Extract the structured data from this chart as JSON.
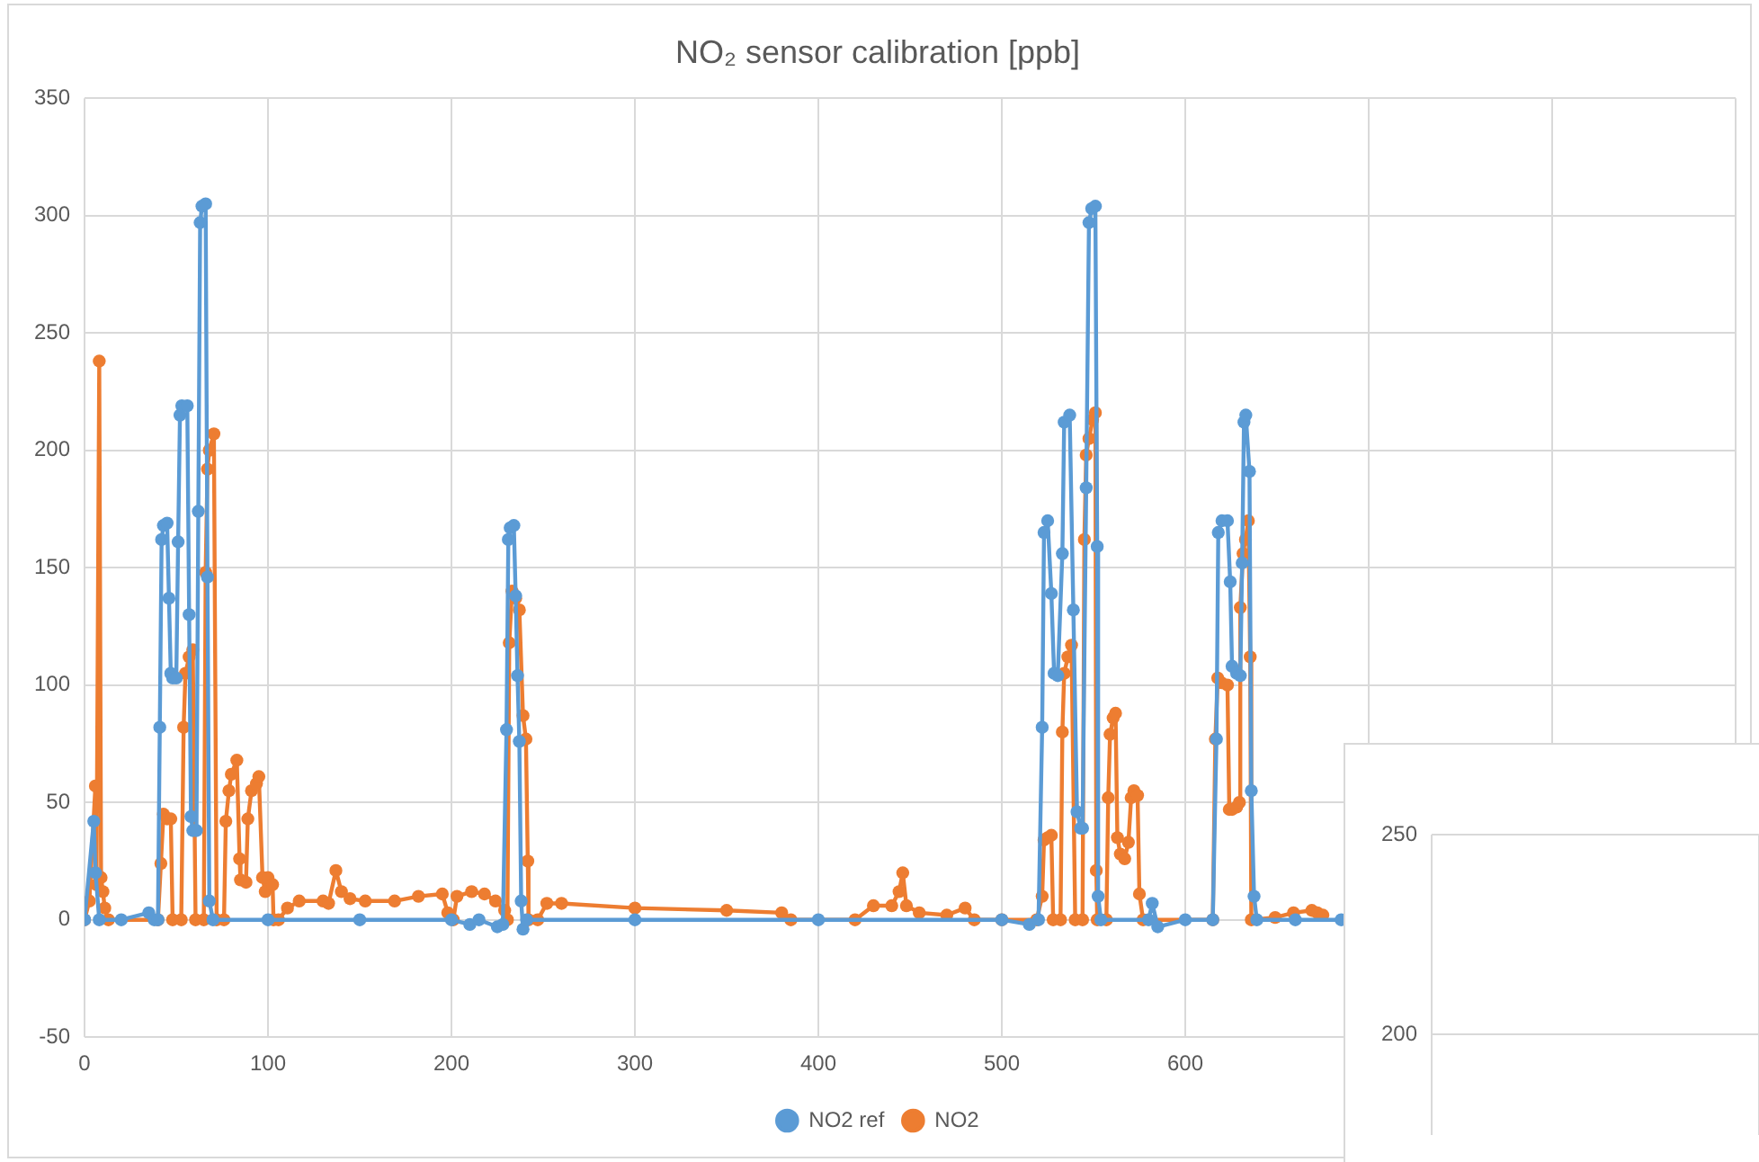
{
  "chart_data": [
    {
      "type": "line",
      "title": "NO₂ sensor calibration [ppb]",
      "xlim": [
        0,
        900
      ],
      "xticks": [
        0,
        100,
        200,
        300,
        400,
        500,
        600,
        {
          "value": 700,
          "label": null
        },
        {
          "value": 800,
          "label": null
        },
        {
          "value": 900,
          "label": null
        }
      ],
      "ylim": [
        -50,
        350
      ],
      "yticks": [
        -50,
        0,
        50,
        100,
        150,
        200,
        250,
        300,
        350
      ],
      "grid": true,
      "legend": "bottom",
      "marker": "circle",
      "line_style": "solid",
      "series": [
        {
          "name": "NO2 ref",
          "color": "#5b9bd5",
          "x": [
            0,
            5,
            6,
            8,
            20,
            35,
            38,
            40,
            41,
            42,
            43,
            45,
            46,
            47,
            48,
            50,
            51,
            52,
            53,
            56,
            57,
            58,
            59,
            61,
            62,
            63,
            64,
            66,
            67,
            68,
            70,
            100,
            150,
            200,
            210,
            215,
            225,
            228,
            230,
            231,
            232,
            234,
            235,
            236,
            237,
            238,
            239,
            241,
            300,
            400,
            500,
            515,
            520,
            522,
            523,
            525,
            527,
            528.5,
            530.5,
            533,
            534,
            537,
            539,
            541,
            543,
            544,
            546,
            547.5,
            549,
            551,
            552,
            552.5,
            554,
            580,
            582,
            585,
            600,
            615,
            617,
            618,
            620,
            623,
            624.5,
            625.5,
            628,
            630,
            631,
            632,
            633,
            635,
            636,
            637.5,
            639,
            660,
            685
          ],
          "values": [
            0,
            42,
            20,
            0,
            0,
            3,
            0,
            0,
            82,
            162,
            168,
            169,
            137,
            105,
            103,
            103,
            161,
            215,
            219,
            219,
            130,
            44,
            38,
            38,
            174,
            297,
            304,
            305,
            146,
            8,
            0,
            0,
            0,
            0,
            -2,
            0,
            -3,
            -2,
            81,
            162,
            167,
            168,
            138,
            104,
            76,
            8,
            -4,
            0,
            0,
            0,
            0,
            -2,
            0,
            82,
            165,
            170,
            139,
            105,
            104,
            156,
            212,
            215,
            132,
            46,
            39,
            39,
            184,
            297,
            303,
            304,
            159,
            10,
            0,
            0,
            7,
            -3,
            0,
            0,
            77,
            165,
            170,
            170,
            144,
            108,
            105,
            104,
            152,
            212,
            215,
            191,
            55,
            10,
            0,
            0,
            0
          ]
        },
        {
          "name": "NO2",
          "color": "#ed7d31",
          "x": [
            0,
            2.6,
            5.9,
            6.5,
            8,
            9,
            10,
            11,
            13,
            40,
            41.6,
            43,
            45,
            47,
            48,
            52.7,
            54,
            55,
            57,
            59,
            60.5,
            65,
            66,
            67,
            68,
            70.5,
            72,
            76,
            77,
            78.7,
            80,
            83,
            84.5,
            85,
            88,
            89,
            91,
            93.7,
            95,
            97,
            98.5,
            100,
            102.5,
            103,
            105.7,
            110.6,
            117,
            130,
            133,
            137,
            140,
            144.7,
            153,
            169,
            182,
            195,
            198,
            201,
            203,
            211,
            218,
            224,
            229,
            230.5,
            231.5,
            233,
            235,
            237,
            239,
            240.6,
            241.6,
            242,
            247,
            252,
            260,
            300,
            350,
            380,
            385,
            420,
            430,
            440,
            444,
            446,
            448,
            455,
            470,
            480,
            485,
            500,
            519,
            522,
            523,
            525,
            527,
            528,
            532,
            533,
            534,
            536,
            538,
            540,
            544,
            545,
            546,
            547.5,
            549.5,
            551,
            551.5,
            552,
            557,
            558,
            559,
            560.7,
            562,
            563,
            564.6,
            567,
            569,
            570.5,
            572,
            574,
            575,
            577,
            615,
            616.4,
            617.7,
            619.7,
            623,
            624,
            625.5,
            628,
            629.5,
            630,
            631.5,
            632.8,
            634.4,
            635.4,
            636,
            649,
            659,
            669,
            672,
            675
          ],
          "values": [
            0,
            8,
            57,
            15,
            238,
            18,
            12,
            5,
            0,
            0,
            24,
            45,
            43,
            43,
            0,
            0,
            82,
            105,
            112,
            115,
            0,
            0,
            148,
            192,
            200,
            207,
            0,
            0,
            42,
            55,
            62,
            68,
            26,
            17,
            16,
            43,
            55,
            58,
            61,
            18,
            12,
            18,
            15,
            0,
            0,
            5,
            8,
            8,
            7,
            21,
            12,
            9,
            8,
            8,
            10,
            11,
            3,
            0,
            10,
            12,
            11,
            8,
            4,
            0,
            118,
            140,
            137,
            132,
            87,
            77,
            25,
            0,
            0,
            7,
            7,
            5,
            4,
            3,
            0,
            0,
            6,
            6,
            12,
            20,
            6,
            3,
            2,
            5,
            0,
            0,
            0,
            10,
            34,
            35,
            36,
            0,
            0,
            80,
            105,
            112,
            117,
            0,
            0,
            162,
            198,
            205,
            213,
            216,
            21,
            0,
            0,
            52,
            79,
            86,
            88,
            35,
            28,
            26,
            33,
            52,
            55,
            53,
            11,
            0,
            0,
            77,
            103,
            101,
            100,
            47,
            47,
            48,
            50,
            133,
            156,
            162,
            170,
            112,
            0,
            1,
            3,
            4,
            3,
            2
          ]
        }
      ]
    },
    {
      "type": "line",
      "categories": [
        null,
        null
      ],
      "values": [
        null,
        null
      ],
      "ylim": [
        175,
        250
      ],
      "yticks": [
        200,
        250
      ],
      "grid": true,
      "tick_labels": "y"
    }
  ]
}
